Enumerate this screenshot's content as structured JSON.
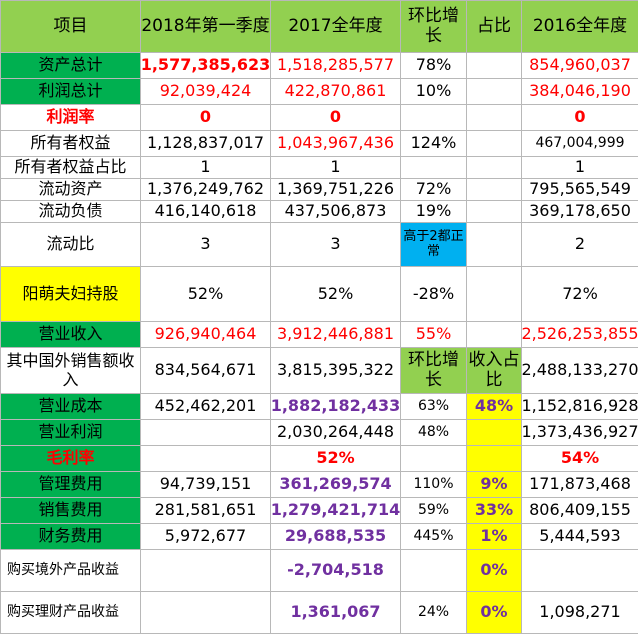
{
  "header": [
    "项目",
    "2018年第一季度",
    "2017全年度",
    "环比增长",
    "占比",
    "2016全年度"
  ],
  "rows": [
    {
      "label": "资产总计",
      "q1": "1,577,385,623",
      "y2017": "1,518,285,577",
      "growth": "78%",
      "ratio": "",
      "y2016": "854,960,037"
    },
    {
      "label": "利润总计",
      "q1": "92,039,424",
      "y2017": "422,870,861",
      "growth": "10%",
      "ratio": "",
      "y2016": "384,046,190"
    },
    {
      "label": "利润率",
      "q1": "0",
      "y2017": "0",
      "growth": "",
      "ratio": "",
      "y2016": "0"
    },
    {
      "label": "所有者权益",
      "q1": "1,128,837,017",
      "y2017": "1,043,967,436",
      "growth": "124%",
      "ratio": "",
      "y2016": "467,004,999"
    },
    {
      "label": "所有者权益占比",
      "q1": "1",
      "y2017": "1",
      "growth": "",
      "ratio": "",
      "y2016": "1"
    },
    {
      "label": "流动资产",
      "q1": "1,376,249,762",
      "y2017": "1,369,751,226",
      "growth": "72%",
      "ratio": "",
      "y2016": "795,565,549"
    },
    {
      "label": "流动负债",
      "q1": "416,140,618",
      "y2017": "437,506,873",
      "growth": "19%",
      "ratio": "",
      "y2016": "369,178,650"
    },
    {
      "label": "流动比",
      "q1": "3",
      "y2017": "3",
      "growth": "高于2都正常",
      "ratio": "",
      "y2016": "2"
    },
    {
      "label": "阳萌夫妇持股",
      "q1": "52%",
      "y2017": "52%",
      "growth": "-28%",
      "ratio": "",
      "y2016": "72%"
    },
    {
      "label": "营业收入",
      "q1": "926,940,464",
      "y2017": "3,912,446,881",
      "growth": "55%",
      "ratio": "",
      "y2016": "2,526,253,855"
    },
    {
      "label": "其中国外销售额收入",
      "q1": "834,564,671",
      "y2017": "3,815,395,322",
      "growth": "环比增长",
      "ratio": "收入占比",
      "y2016": "2,488,133,270"
    },
    {
      "label": "营业成本",
      "q1": "452,462,201",
      "y2017": "1,882,182,433",
      "growth": "63%",
      "ratio": "48%",
      "y2016": "1,152,816,928"
    },
    {
      "label": "营业利润",
      "q1": "",
      "y2017": "2,030,264,448",
      "growth": "48%",
      "ratio": "",
      "y2016": "1,373,436,927"
    },
    {
      "label": "毛利率",
      "q1": "",
      "y2017": "52%",
      "growth": "",
      "ratio": "",
      "y2016": "54%"
    },
    {
      "label": "管理费用",
      "q1": "94,739,151",
      "y2017": "361,269,574",
      "growth": "110%",
      "ratio": "9%",
      "y2016": "171,873,468"
    },
    {
      "label": "销售费用",
      "q1": "281,581,651",
      "y2017": "1,279,421,714",
      "growth": "59%",
      "ratio": "33%",
      "y2016": "806,409,155"
    },
    {
      "label": "财务费用",
      "q1": "5,972,677",
      "y2017": "29,688,535",
      "growth": "445%",
      "ratio": "1%",
      "y2016": "5,444,593"
    },
    {
      "label": "购买境外产品收益",
      "q1": "",
      "y2017": "-2,704,518",
      "growth": "",
      "ratio": "0%",
      "y2016": ""
    },
    {
      "label": "购买理财产品收益",
      "q1": "",
      "y2017": "1,361,067",
      "growth": "24%",
      "ratio": "0%",
      "y2016": "1,098,271"
    }
  ],
  "colors": {
    "header_green": "#92d050",
    "label_green": "#00b050",
    "highlight_yellow": "#ffff00",
    "note_cyan": "#00b0f0",
    "red": "#ff0000",
    "purple": "#7030a0",
    "grid": "#b8b8b8"
  }
}
